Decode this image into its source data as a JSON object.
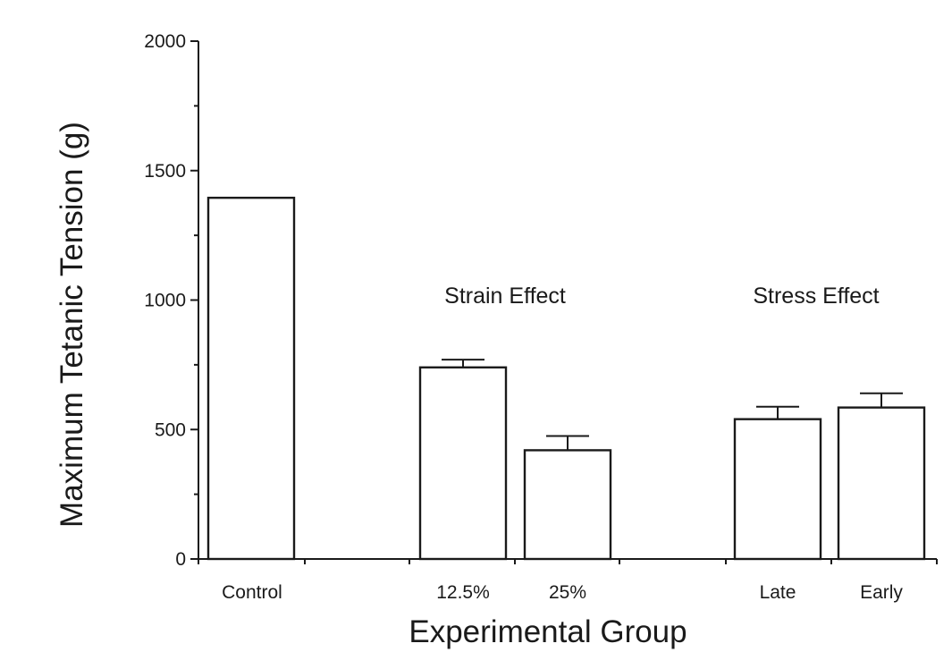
{
  "chart_data": {
    "type": "bar",
    "title": "",
    "xlabel": "Experimental Group",
    "ylabel": "Maximum Tetanic Tension (g)",
    "ylim": [
      0,
      2000
    ],
    "yticks": [
      0,
      500,
      1000,
      1500,
      2000
    ],
    "grid": false,
    "categories": [
      "Control",
      "12.5%",
      "25%",
      "Late",
      "Early"
    ],
    "values": [
      1395,
      740,
      420,
      540,
      585
    ],
    "error_upper": [
      null,
      30,
      55,
      48,
      55
    ],
    "annotations": [
      {
        "text": "Strain Effect",
        "groups": [
          "12.5%",
          "25%"
        ]
      },
      {
        "text": "Stress Effect",
        "groups": [
          "Late",
          "Early"
        ]
      }
    ],
    "colors": {
      "bar_fill": "#ffffff",
      "stroke": "#1a1a1a"
    }
  }
}
